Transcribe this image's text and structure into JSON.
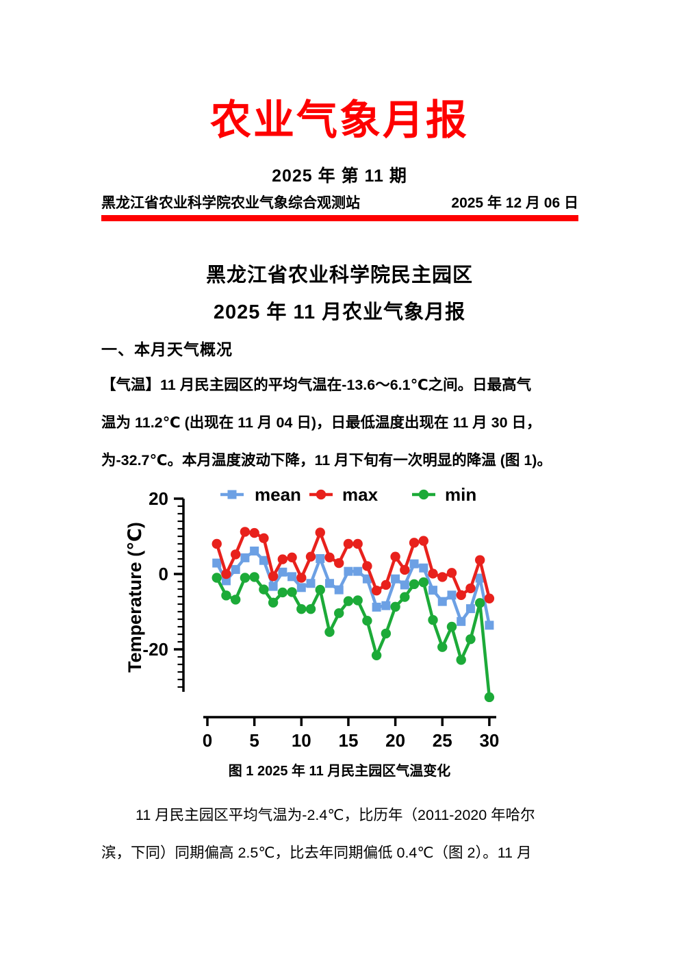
{
  "header": {
    "title": "农业气象月报",
    "issue": "2025 年 第 11 期",
    "station": "黑龙江省农业科学院农业气象综合观测站",
    "date": "2025 年 12 月 06 日"
  },
  "report": {
    "heading_line1": "黑龙江省农业科学院民主园区",
    "heading_line2": "2025 年 11 月农业气象月报",
    "section1_title": "一、本月天气概况",
    "para1_lines": [
      "【气温】11 月民主园区的平均气温在-13.6～6.1℃之间。日最高气",
      "温为 11.2℃ (出现在 11 月 04 日)，日最低温度出现在 11 月 30 日，",
      "为-32.7℃。本月温度波动下降，11 月下旬有一次明显的降温 (图 1)。"
    ],
    "figure1_caption": "图 1 2025 年 11 月民主园区气温变化",
    "para2_lines": [
      "11 月民主园区平均气温为-2.4℃，比历年（2011-2020 年哈尔",
      "滨，下同）同期偏高 2.5℃，比去年同期偏低 0.4℃（图 2）。11 月"
    ]
  },
  "chart_data": {
    "type": "line",
    "title": "",
    "xlabel": "",
    "ylabel": "Temperature (℃)",
    "x": [
      1,
      2,
      3,
      4,
      5,
      6,
      7,
      8,
      9,
      10,
      11,
      12,
      13,
      14,
      15,
      16,
      17,
      18,
      19,
      20,
      21,
      22,
      23,
      24,
      25,
      26,
      27,
      28,
      29,
      30
    ],
    "series": [
      {
        "name": "mean",
        "color": "#6CA0E4",
        "marker": "square",
        "values": [
          2.9,
          -1.8,
          1.2,
          4.3,
          6.1,
          3.6,
          -3.3,
          0.5,
          -0.7,
          -3.6,
          -2.5,
          4.1,
          -2.5,
          -4.2,
          0.7,
          0.7,
          -1.3,
          -8.8,
          -8.4,
          -1.3,
          -2.9,
          2.7,
          1.6,
          -4.3,
          -7.3,
          -5.6,
          -12.6,
          -9.2,
          -1.1,
          -13.6
        ]
      },
      {
        "name": "max",
        "color": "#E8211C",
        "marker": "circle",
        "values": [
          8.0,
          0.0,
          5.2,
          11.2,
          10.9,
          9.5,
          -0.6,
          3.9,
          4.4,
          -1.0,
          4.6,
          11.0,
          4.4,
          2.9,
          8.0,
          8.0,
          2.1,
          -4.4,
          -2.9,
          4.6,
          1.1,
          8.3,
          8.8,
          0.1,
          -0.8,
          0.3,
          -5.6,
          -3.8,
          3.7,
          -6.5
        ]
      },
      {
        "name": "min",
        "color": "#1CAA38",
        "marker": "circle",
        "values": [
          -1.0,
          -5.7,
          -6.8,
          -1.0,
          -0.8,
          -4.1,
          -7.6,
          -4.9,
          -4.8,
          -9.3,
          -9.3,
          -4.2,
          -15.4,
          -10.4,
          -7.2,
          -7.0,
          -12.4,
          -21.6,
          -15.8,
          -8.7,
          -6.1,
          -2.7,
          -2.2,
          -12.2,
          -19.4,
          -14.0,
          -22.8,
          -17.3,
          -7.7,
          -32.7
        ]
      }
    ],
    "x_axis": {
      "label": "",
      "ticks": [
        0,
        5,
        10,
        15,
        20,
        25,
        30
      ],
      "range": [
        0,
        31
      ]
    },
    "y_axis": {
      "label": "Temperature (℃)",
      "ticks": [
        20,
        0,
        -20
      ],
      "minor_tick_step": 2,
      "range": [
        -34,
        20
      ]
    },
    "legend": {
      "position": "top",
      "entries": [
        "mean",
        "max",
        "min"
      ]
    },
    "grid": false
  }
}
